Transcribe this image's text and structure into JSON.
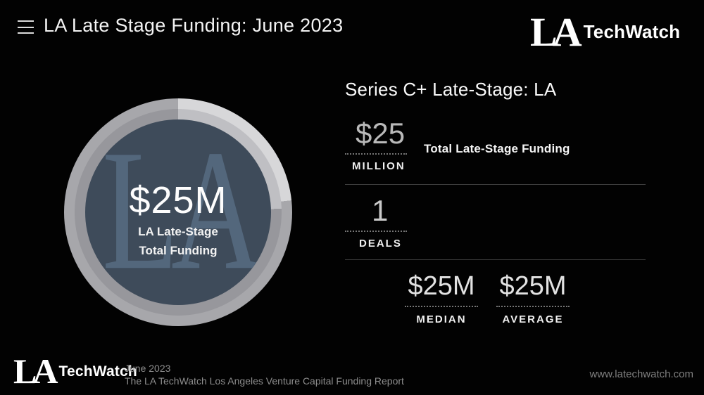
{
  "header": {
    "title": "LA Late Stage Funding: June 2023"
  },
  "brand": {
    "initials": "LA",
    "name": "TechWatch"
  },
  "donut": {
    "watermark": "LA",
    "center_value": "$25M",
    "center_label_line1": "LA Late-Stage",
    "center_label_line2": "Total Funding",
    "segment_sweep_deg": 84
  },
  "panel": {
    "heading": "Series C+ Late-Stage: LA",
    "stats": [
      {
        "value": "$25",
        "label": "MILLION",
        "description": "Total Late-Stage Funding"
      },
      {
        "value": "1",
        "label": "DEALS"
      },
      {
        "value": "$25M",
        "label": "MEDIAN"
      },
      {
        "value": "$25M",
        "label": "AVERAGE"
      }
    ]
  },
  "footer": {
    "date": "June 2023",
    "report_title": "The LA TechWatch Los Angeles Venture Capital Funding Report",
    "website": "www.latechwatch.com"
  },
  "theme": {
    "ring-light": "#d7d7d9",
    "ring-dark": "#a7a7ab",
    "ring2-light": "#bfbfc3",
    "ring2-dark": "#97979c",
    "disc": "#3e4b5a",
    "watermark": "#53677c",
    "background": "#020202",
    "divider": "#3c3c3c",
    "muted-text": "#8d8d8d"
  },
  "chart_data": {
    "type": "pie",
    "title": "Series C+ Late-Stage: LA",
    "subtitle": "LA Late Stage Funding: June 2023",
    "center_value": "$25M",
    "center_label": "LA Late-Stage Total Funding",
    "segments": [
      {
        "label": "highlighted arc",
        "sweep_deg": 84,
        "color": "#d7d7d9"
      },
      {
        "label": "remainder",
        "sweep_deg": 276,
        "color": "#a7a7ab"
      }
    ],
    "legend": "none",
    "stats": [
      {
        "value": 25,
        "unit": "million USD",
        "label": "Total Late-Stage Funding"
      },
      {
        "value": 1,
        "unit": "deals",
        "label": "Deals"
      },
      {
        "value": 25,
        "unit": "million USD",
        "label": "Median"
      },
      {
        "value": 25,
        "unit": "million USD",
        "label": "Average"
      }
    ]
  }
}
